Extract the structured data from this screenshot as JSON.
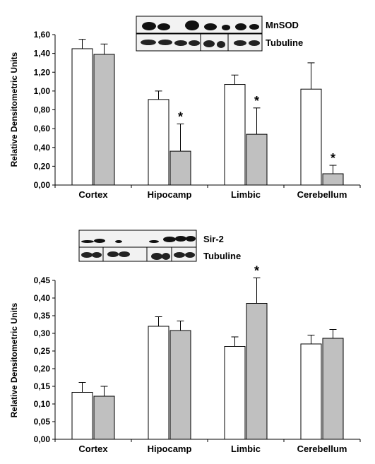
{
  "chart_data": [
    {
      "type": "bar",
      "ylabel": "Relative Densitometric Units",
      "ylim": [
        0,
        1.6
      ],
      "yticks": [
        "0,00",
        "0,20",
        "0,40",
        "0,60",
        "0,80",
        "1,00",
        "1,20",
        "1,40",
        "1,60"
      ],
      "categories": [
        "Cortex",
        "Hipocamp",
        "Limbic",
        "Cerebellum"
      ],
      "series": [
        {
          "fill": "#ffffff",
          "values": [
            1.45,
            0.91,
            1.07,
            1.02
          ],
          "errors": [
            0.1,
            0.09,
            0.1,
            0.28
          ]
        },
        {
          "fill": "#c0c0c0",
          "values": [
            1.39,
            0.36,
            0.54,
            0.12
          ],
          "errors": [
            0.11,
            0.29,
            0.28,
            0.09
          ]
        }
      ],
      "significance": [
        "",
        "*",
        "*",
        "*"
      ],
      "blot_labels": [
        "MnSOD",
        "Tubuline"
      ],
      "grid": false,
      "legend": "none"
    },
    {
      "type": "bar",
      "ylabel": "Relative Densitometric Units",
      "ylim": [
        0,
        0.45
      ],
      "yticks": [
        "0,00",
        "0,05",
        "0,10",
        "0,15",
        "0,20",
        "0,25",
        "0,30",
        "0,35",
        "0,40",
        "0,45"
      ],
      "categories": [
        "Cortex",
        "Hipocamp",
        "Limbic",
        "Cerebellum"
      ],
      "series": [
        {
          "fill": "#ffffff",
          "values": [
            0.133,
            0.32,
            0.263,
            0.27
          ],
          "errors": [
            0.028,
            0.027,
            0.027,
            0.025
          ]
        },
        {
          "fill": "#c0c0c0",
          "values": [
            0.122,
            0.308,
            0.385,
            0.286
          ],
          "errors": [
            0.028,
            0.027,
            0.072,
            0.025
          ]
        }
      ],
      "significance": [
        "",
        "",
        "*",
        ""
      ],
      "blot_labels": [
        "Sir-2",
        "Tubuline"
      ],
      "grid": false,
      "legend": "none"
    }
  ]
}
